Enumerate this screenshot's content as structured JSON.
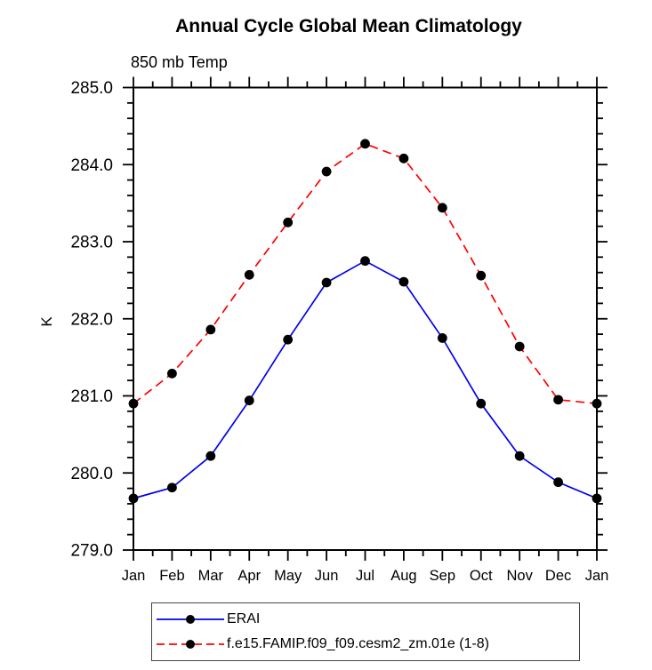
{
  "title": "Annual Cycle Global Mean Climatology",
  "subtitle": "850 mb Temp",
  "ylabel": "K",
  "chart_data": {
    "type": "line",
    "x_categories": [
      "Jan",
      "Feb",
      "Mar",
      "Apr",
      "May",
      "Jun",
      "Jul",
      "Aug",
      "Sep",
      "Oct",
      "Nov",
      "Dec",
      "Jan"
    ],
    "xlabel": "",
    "ylabel": "K",
    "ylim": [
      279.0,
      285.0
    ],
    "y_major_step": 1.0,
    "y_minor_step": 0.2,
    "y_tick_decimals": 1,
    "grid": false,
    "legend_position": "bottom-left",
    "marker_color": "#000000",
    "series": [
      {
        "name": "ERAI",
        "color": "#0000ee",
        "line_style": "solid",
        "marker": "circle",
        "values": [
          279.67,
          279.81,
          280.22,
          280.94,
          281.73,
          282.47,
          282.75,
          282.48,
          281.75,
          280.9,
          280.22,
          279.88,
          279.67
        ]
      },
      {
        "name": "f.e15.FAMIP.f09_f09.cesm2_zm.01e (1-8)",
        "color": "#ff0000",
        "line_style": "dashed",
        "marker": "circle",
        "values": [
          280.9,
          281.29,
          281.86,
          282.57,
          283.25,
          283.91,
          284.27,
          284.08,
          283.44,
          282.56,
          281.64,
          280.95,
          280.9
        ]
      }
    ]
  }
}
